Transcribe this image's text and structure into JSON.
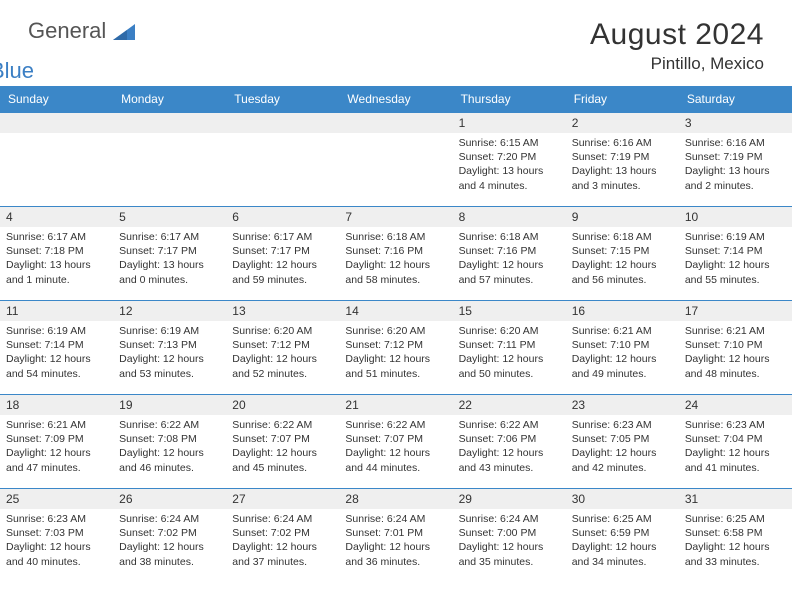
{
  "brand": {
    "name1": "General",
    "name2": "Blue",
    "accent": "#3b7fc4"
  },
  "title": "August 2024",
  "location": "Pintillo, Mexico",
  "weekdays": [
    "Sunday",
    "Monday",
    "Tuesday",
    "Wednesday",
    "Thursday",
    "Friday",
    "Saturday"
  ],
  "style": {
    "header_bg": "#3b87c8",
    "header_fg": "#ffffff",
    "daynum_bg": "#efefef",
    "rule_color": "#3b87c8",
    "body_font_size": 10.5,
    "header_font_size": 12,
    "title_font_size": 30,
    "location_font_size": 17
  },
  "startOffset": 4,
  "days": [
    {
      "n": 1,
      "sr": "6:15 AM",
      "ss": "7:20 PM",
      "dl": "13 hours and 4 minutes."
    },
    {
      "n": 2,
      "sr": "6:16 AM",
      "ss": "7:19 PM",
      "dl": "13 hours and 3 minutes."
    },
    {
      "n": 3,
      "sr": "6:16 AM",
      "ss": "7:19 PM",
      "dl": "13 hours and 2 minutes."
    },
    {
      "n": 4,
      "sr": "6:17 AM",
      "ss": "7:18 PM",
      "dl": "13 hours and 1 minute."
    },
    {
      "n": 5,
      "sr": "6:17 AM",
      "ss": "7:17 PM",
      "dl": "13 hours and 0 minutes."
    },
    {
      "n": 6,
      "sr": "6:17 AM",
      "ss": "7:17 PM",
      "dl": "12 hours and 59 minutes."
    },
    {
      "n": 7,
      "sr": "6:18 AM",
      "ss": "7:16 PM",
      "dl": "12 hours and 58 minutes."
    },
    {
      "n": 8,
      "sr": "6:18 AM",
      "ss": "7:16 PM",
      "dl": "12 hours and 57 minutes."
    },
    {
      "n": 9,
      "sr": "6:18 AM",
      "ss": "7:15 PM",
      "dl": "12 hours and 56 minutes."
    },
    {
      "n": 10,
      "sr": "6:19 AM",
      "ss": "7:14 PM",
      "dl": "12 hours and 55 minutes."
    },
    {
      "n": 11,
      "sr": "6:19 AM",
      "ss": "7:14 PM",
      "dl": "12 hours and 54 minutes."
    },
    {
      "n": 12,
      "sr": "6:19 AM",
      "ss": "7:13 PM",
      "dl": "12 hours and 53 minutes."
    },
    {
      "n": 13,
      "sr": "6:20 AM",
      "ss": "7:12 PM",
      "dl": "12 hours and 52 minutes."
    },
    {
      "n": 14,
      "sr": "6:20 AM",
      "ss": "7:12 PM",
      "dl": "12 hours and 51 minutes."
    },
    {
      "n": 15,
      "sr": "6:20 AM",
      "ss": "7:11 PM",
      "dl": "12 hours and 50 minutes."
    },
    {
      "n": 16,
      "sr": "6:21 AM",
      "ss": "7:10 PM",
      "dl": "12 hours and 49 minutes."
    },
    {
      "n": 17,
      "sr": "6:21 AM",
      "ss": "7:10 PM",
      "dl": "12 hours and 48 minutes."
    },
    {
      "n": 18,
      "sr": "6:21 AM",
      "ss": "7:09 PM",
      "dl": "12 hours and 47 minutes."
    },
    {
      "n": 19,
      "sr": "6:22 AM",
      "ss": "7:08 PM",
      "dl": "12 hours and 46 minutes."
    },
    {
      "n": 20,
      "sr": "6:22 AM",
      "ss": "7:07 PM",
      "dl": "12 hours and 45 minutes."
    },
    {
      "n": 21,
      "sr": "6:22 AM",
      "ss": "7:07 PM",
      "dl": "12 hours and 44 minutes."
    },
    {
      "n": 22,
      "sr": "6:22 AM",
      "ss": "7:06 PM",
      "dl": "12 hours and 43 minutes."
    },
    {
      "n": 23,
      "sr": "6:23 AM",
      "ss": "7:05 PM",
      "dl": "12 hours and 42 minutes."
    },
    {
      "n": 24,
      "sr": "6:23 AM",
      "ss": "7:04 PM",
      "dl": "12 hours and 41 minutes."
    },
    {
      "n": 25,
      "sr": "6:23 AM",
      "ss": "7:03 PM",
      "dl": "12 hours and 40 minutes."
    },
    {
      "n": 26,
      "sr": "6:24 AM",
      "ss": "7:02 PM",
      "dl": "12 hours and 38 minutes."
    },
    {
      "n": 27,
      "sr": "6:24 AM",
      "ss": "7:02 PM",
      "dl": "12 hours and 37 minutes."
    },
    {
      "n": 28,
      "sr": "6:24 AM",
      "ss": "7:01 PM",
      "dl": "12 hours and 36 minutes."
    },
    {
      "n": 29,
      "sr": "6:24 AM",
      "ss": "7:00 PM",
      "dl": "12 hours and 35 minutes."
    },
    {
      "n": 30,
      "sr": "6:25 AM",
      "ss": "6:59 PM",
      "dl": "12 hours and 34 minutes."
    },
    {
      "n": 31,
      "sr": "6:25 AM",
      "ss": "6:58 PM",
      "dl": "12 hours and 33 minutes."
    }
  ],
  "labels": {
    "sunrise": "Sunrise:",
    "sunset": "Sunset:",
    "daylight": "Daylight:"
  }
}
